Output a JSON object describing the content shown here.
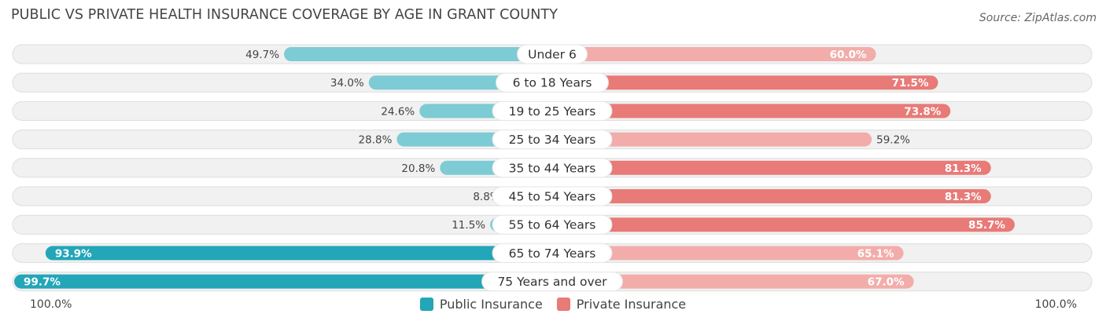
{
  "header": {
    "title": "PUBLIC VS PRIVATE HEALTH INSURANCE COVERAGE BY AGE IN GRANT COUNTY",
    "source": "Source: ZipAtlas.com"
  },
  "axis": {
    "left_label": "100.0%",
    "right_label": "100.0%"
  },
  "colors": {
    "public": "#22a6b8",
    "public_light": "#7dcbd4",
    "private": "#e87a77",
    "private_light": "#f2adab",
    "track": "#f1f1f1",
    "track_border": "#dddddd"
  },
  "chart_data": {
    "type": "bar",
    "orientation": "horizontal-diverging",
    "title": "PUBLIC VS PRIVATE HEALTH INSURANCE COVERAGE BY AGE IN GRANT COUNTY",
    "xlim": [
      0,
      100
    ],
    "categories": [
      "Under 6",
      "6 to 18 Years",
      "19 to 25 Years",
      "25 to 34 Years",
      "35 to 44 Years",
      "45 to 54 Years",
      "55 to 64 Years",
      "65 to 74 Years",
      "75 Years and over"
    ],
    "series": [
      {
        "name": "Public Insurance",
        "side": "left",
        "values": [
          49.7,
          34.0,
          24.6,
          28.8,
          20.8,
          8.8,
          11.5,
          93.9,
          99.7
        ],
        "labels": [
          "49.7%",
          "34.0%",
          "24.6%",
          "28.8%",
          "20.8%",
          "8.8%",
          "11.5%",
          "93.9%",
          "99.7%"
        ]
      },
      {
        "name": "Private Insurance",
        "side": "right",
        "values": [
          60.0,
          71.5,
          73.8,
          59.2,
          81.3,
          81.3,
          85.7,
          65.1,
          67.0
        ],
        "labels": [
          "60.0%",
          "71.5%",
          "73.8%",
          "59.2%",
          "81.3%",
          "81.3%",
          "85.7%",
          "65.1%",
          "67.0%"
        ]
      }
    ],
    "legend": {
      "position": "bottom-center",
      "entries": [
        "Public Insurance",
        "Private Insurance"
      ]
    }
  }
}
